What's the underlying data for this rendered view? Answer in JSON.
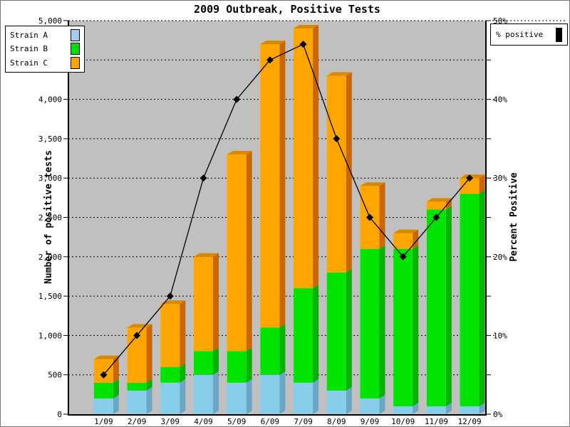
{
  "title": "2009 Outbreak, Positive Tests",
  "legend_strains": {
    "items": [
      {
        "label": "Strain A",
        "color": "#A4CBF0"
      },
      {
        "label": "Strain B",
        "color": "#00E000"
      },
      {
        "label": "Strain C",
        "color": "#FFA500"
      }
    ]
  },
  "legend_line": {
    "label": "% positive",
    "color": "#000000"
  },
  "chart_data": {
    "type": "bar",
    "stacked": true,
    "title": "2009 Outbreak, Positive Tests",
    "ylabel": "Number of positive tests",
    "y2label": "Percent Positive",
    "ylim": [
      0,
      5000
    ],
    "ytick_step": 500,
    "ytick_labels": [
      "0",
      "500",
      "1,000",
      "1,500",
      "2,000",
      "2,500",
      "3,000",
      "3,500",
      "4,000",
      "4,500",
      "5,000"
    ],
    "y2lim": [
      0,
      50
    ],
    "y2tick_label_step": 10,
    "y2tick_minor_step": 5,
    "y2tick_labels": [
      "0%",
      "10%",
      "20%",
      "30%",
      "40%",
      "50%"
    ],
    "grid": "dotted",
    "legend_position": "top-left",
    "plot_bg": "#C0C0C0",
    "categories": [
      "1/09",
      "2/09",
      "3/09",
      "4/09",
      "5/09",
      "6/09",
      "7/09",
      "8/09",
      "9/09",
      "10/09",
      "11/09",
      "12/09"
    ],
    "series": [
      {
        "name": "Strain A",
        "color": "#87CEEB",
        "side_color": "#69A7C5",
        "values": [
          200,
          300,
          400,
          500,
          400,
          500,
          400,
          300,
          200,
          100,
          100,
          100
        ]
      },
      {
        "name": "Strain B",
        "color": "#00E400",
        "side_color": "#00B400",
        "values": [
          200,
          100,
          200,
          300,
          400,
          600,
          1200,
          1500,
          1900,
          2000,
          2500,
          2700
        ]
      },
      {
        "name": "Strain C",
        "color": "#FFA500",
        "side_color": "#CC6600",
        "top_color": "#D68A00",
        "values": [
          300,
          700,
          800,
          1200,
          2500,
          3600,
          3300,
          2500,
          800,
          200,
          100,
          200
        ]
      }
    ],
    "bar_totals": [
      700,
      1100,
      1400,
      2000,
      3300,
      4700,
      4900,
      4300,
      2900,
      2300,
      2700,
      3000
    ],
    "line_series": {
      "name": "% positive",
      "axis": "right",
      "color": "#000000",
      "marker": "diamond",
      "values": [
        5,
        10,
        15,
        30,
        40,
        45,
        47,
        35,
        25,
        20,
        25,
        30
      ]
    }
  }
}
